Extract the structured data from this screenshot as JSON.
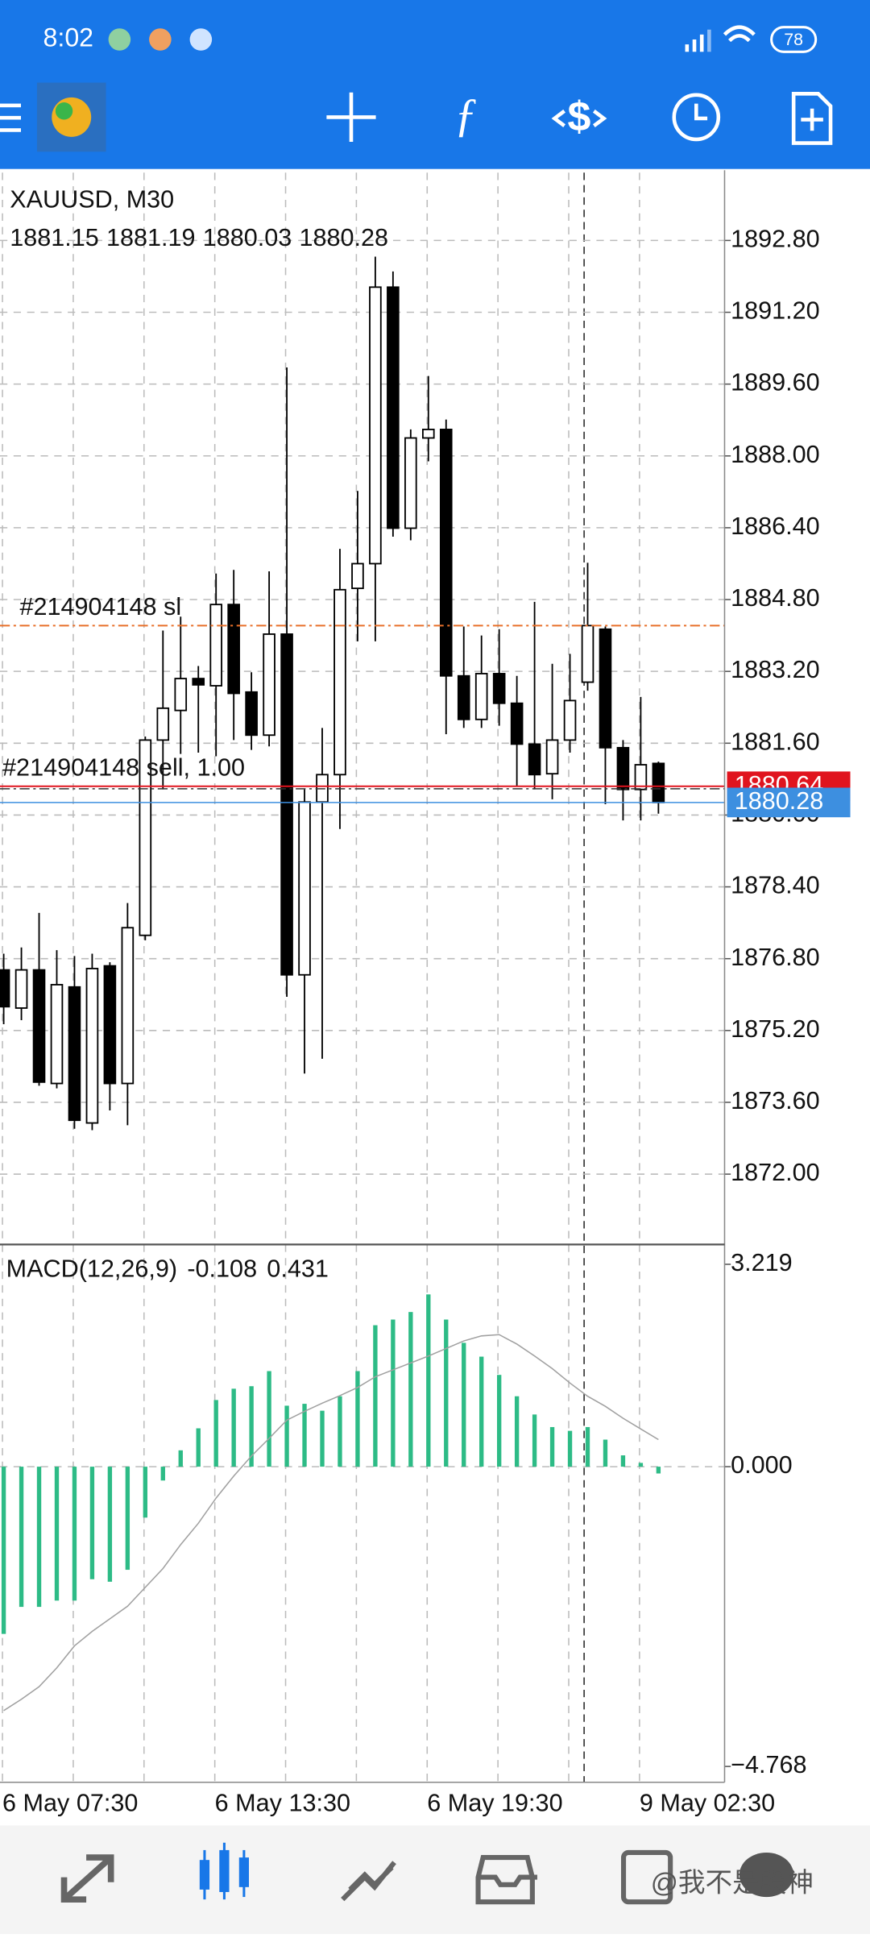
{
  "status_bar": {
    "time": "8:02",
    "battery": "78"
  },
  "watermark": "@我不是股神",
  "chart_data": [
    {
      "type": "candlestick",
      "symbol": "XAUUSD, M30",
      "categories": [
        "6 May 07:30",
        null,
        null,
        null,
        null,
        null,
        null,
        null,
        null,
        null,
        null,
        null,
        "6 May 13:30",
        null,
        null,
        null,
        null,
        null,
        null,
        null,
        null,
        null,
        null,
        null,
        "6 May 19:30",
        null,
        null,
        null,
        null,
        null,
        null,
        null,
        null,
        null,
        null,
        null,
        "9 May 02:30",
        null
      ],
      "open": [
        1876.55,
        1875.7,
        1876.55,
        1874.02,
        1876.17,
        1873.14,
        1876.64,
        1874.02,
        1877.32,
        1881.67,
        1882.33,
        1883.04,
        1882.88,
        1884.69,
        1882.74,
        1881.78,
        1884.03,
        1876.44,
        1880.29,
        1880.9,
        1885.05,
        1885.6,
        1891.76,
        1886.39,
        1888.4,
        1888.59,
        1883.1,
        1882.13,
        1883.15,
        1882.49,
        1881.58,
        1880.92,
        1881.67,
        1882.96,
        1884.14,
        1881.5,
        1880.57,
        1881.15
      ],
      "high": [
        1876.91,
        1877.05,
        1877.82,
        1876.99,
        1876.86,
        1876.91,
        1876.72,
        1878.04,
        1881.75,
        1884.11,
        1884.42,
        1883.32,
        1885.38,
        1885.46,
        1883.18,
        1885.43,
        1889.97,
        1880.57,
        1881.94,
        1885.93,
        1887.22,
        1892.44,
        1892.11,
        1888.59,
        1889.78,
        1888.81,
        1884.2,
        1884.0,
        1884.14,
        1883.1,
        1884.75,
        1883.37,
        1883.59,
        1885.62,
        1884.2,
        1881.67,
        1882.63,
        1881.19
      ],
      "low": [
        1875.34,
        1875.43,
        1873.97,
        1873.91,
        1873.01,
        1872.98,
        1873.42,
        1873.09,
        1877.21,
        1880.57,
        1881.36,
        1881.39,
        1881.31,
        1881.67,
        1881.45,
        1881.53,
        1875.95,
        1874.24,
        1874.57,
        1879.69,
        1883.87,
        1883.87,
        1886.2,
        1886.12,
        1887.88,
        1881.8,
        1881.94,
        1881.94,
        1881.99,
        1880.65,
        1880.57,
        1880.35,
        1881.39,
        1882.77,
        1880.24,
        1879.88,
        1879.88,
        1880.03
      ],
      "close": [
        1875.73,
        1876.55,
        1874.05,
        1876.22,
        1873.2,
        1876.58,
        1874.02,
        1877.49,
        1881.67,
        1882.38,
        1883.04,
        1882.9,
        1884.69,
        1882.71,
        1881.78,
        1884.03,
        1876.44,
        1880.29,
        1880.9,
        1885.02,
        1885.6,
        1891.76,
        1886.39,
        1888.4,
        1888.59,
        1883.1,
        1882.13,
        1883.15,
        1882.49,
        1881.58,
        1880.9,
        1881.67,
        1882.55,
        1884.22,
        1881.5,
        1880.57,
        1881.12,
        1880.28
      ],
      "up_color": "#ffffff",
      "down_color": "#000000",
      "ylim": [
        1870.46,
        1894.31
      ],
      "yticks": [
        {
          "value": 1872,
          "label": "1872.00"
        },
        {
          "value": 1873.6,
          "label": "1873.60"
        },
        {
          "value": 1875.2,
          "label": "1875.20"
        },
        {
          "value": 1876.8,
          "label": "1876.80"
        },
        {
          "value": 1878.4,
          "label": "1878.40"
        },
        {
          "value": 1880,
          "label": "1880.00"
        },
        {
          "value": 1881.6,
          "label": "1881.60"
        },
        {
          "value": 1883.2,
          "label": "1883.20"
        },
        {
          "value": 1884.8,
          "label": "1884.80"
        },
        {
          "value": 1886.4,
          "label": "1886.40"
        },
        {
          "value": 1888,
          "label": "1888.00"
        },
        {
          "value": 1889.6,
          "label": "1889.60"
        },
        {
          "value": 1891.2,
          "label": "1891.20"
        },
        {
          "value": 1892.8,
          "label": "1892.80"
        }
      ],
      "grid": true,
      "orders": [
        {
          "label": "#214904148 sl",
          "price": 1884.22,
          "color": "#e8702a"
        },
        {
          "label": "#214904148 sell, 1.00",
          "price": 1880.64,
          "color": "#e0141e"
        }
      ],
      "bid_color": "#3d8fe0"
    },
    {
      "type": "macd",
      "title": "MACD(12,26,9)",
      "series": [
        {
          "name": "MACD",
          "color": "#2dbb86",
          "values": [
            -2.66,
            -2.23,
            -2.23,
            -2.13,
            -2.13,
            -1.79,
            -1.83,
            -1.64,
            -0.81,
            -0.22,
            0.26,
            0.61,
            1.06,
            1.24,
            1.28,
            1.52,
            0.97,
            1.0,
            0.89,
            1.12,
            1.52,
            2.25,
            2.34,
            2.46,
            2.74,
            2.34,
            1.97,
            1.75,
            1.46,
            1.12,
            0.83,
            0.63,
            0.57,
            0.63,
            0.43,
            0.18,
            0.06,
            -0.108
          ]
        },
        {
          "name": "Signal",
          "color": "#a0a0a0",
          "values": [
            -3.88,
            -3.7,
            -3.5,
            -3.2,
            -2.85,
            -2.62,
            -2.42,
            -2.22,
            -1.92,
            -1.62,
            -1.24,
            -0.9,
            -0.5,
            -0.15,
            0.17,
            0.45,
            0.74,
            0.88,
            1.01,
            1.13,
            1.26,
            1.43,
            1.54,
            1.65,
            1.76,
            1.88,
            2.0,
            2.08,
            2.1,
            1.95,
            1.76,
            1.56,
            1.33,
            1.12,
            0.96,
            0.77,
            0.6,
            0.431
          ]
        }
      ],
      "ylim": [
        -5.0,
        3.475
      ],
      "yticks": [
        {
          "value": -4.768,
          "label": "−4.768"
        },
        {
          "value": 0,
          "label": "0.000"
        },
        3.219
      ]
    }
  ]
}
